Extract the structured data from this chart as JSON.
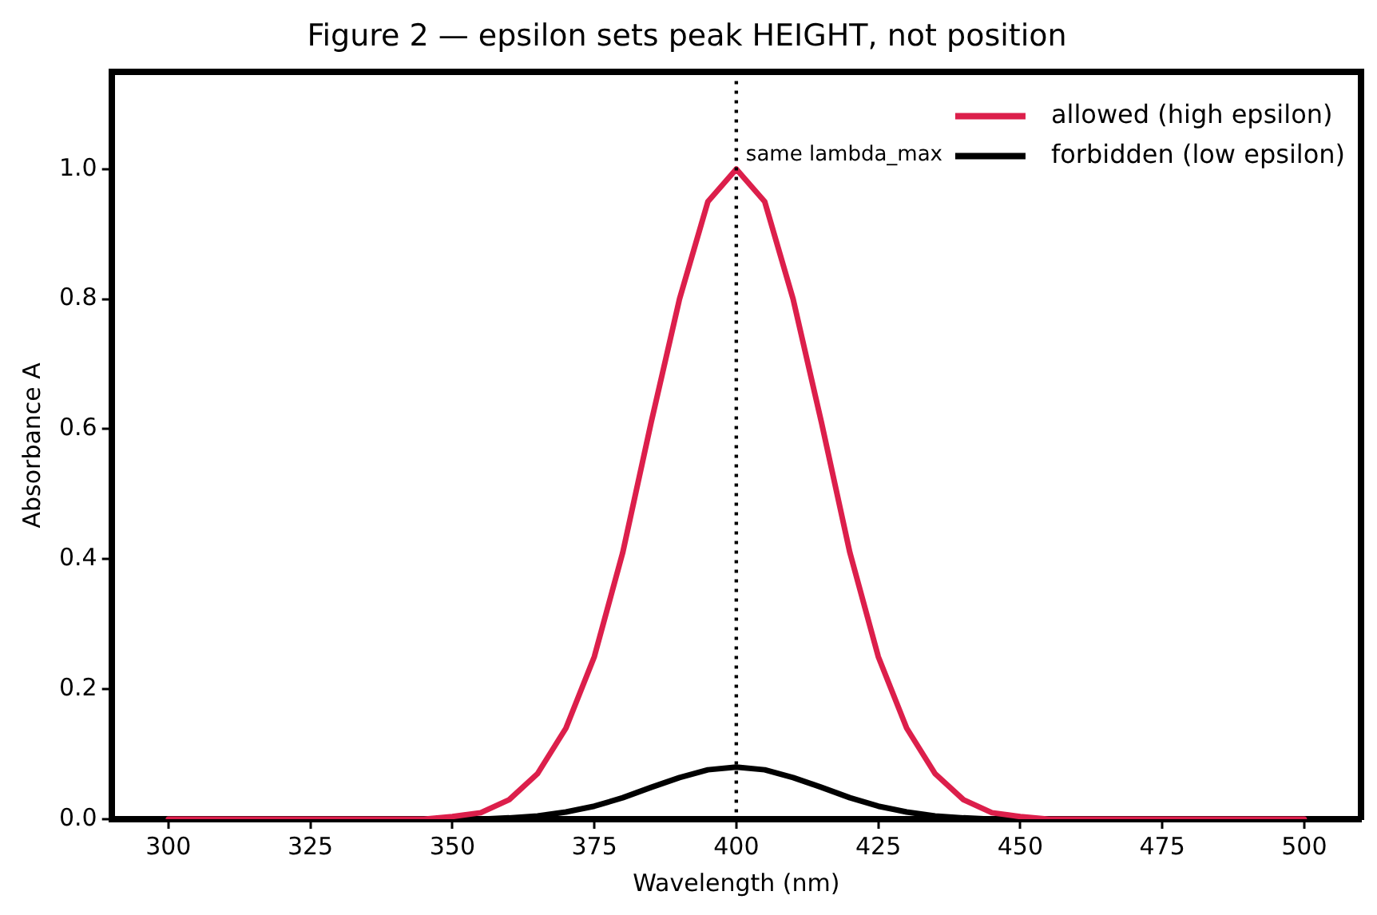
{
  "chart_data": {
    "type": "line",
    "title": "Figure 2 — epsilon sets peak HEIGHT, not position",
    "xlabel": "Wavelength (nm)",
    "ylabel": "Absorbance A",
    "x": [
      300,
      305,
      310,
      315,
      320,
      325,
      330,
      335,
      340,
      345,
      350,
      355,
      360,
      365,
      370,
      375,
      380,
      385,
      390,
      395,
      400,
      405,
      410,
      415,
      420,
      425,
      430,
      435,
      440,
      445,
      450,
      455,
      460,
      465,
      470,
      475,
      480,
      485,
      490,
      495,
      500
    ],
    "series": [
      {
        "name": "allowed (high epsilon)",
        "color": "#dc1f4b",
        "values": [
          0,
          0,
          0,
          0,
          0,
          0,
          0,
          0,
          0,
          0,
          0.004,
          0.01,
          0.03,
          0.07,
          0.14,
          0.25,
          0.41,
          0.61,
          0.8,
          0.95,
          1.0,
          0.95,
          0.8,
          0.61,
          0.41,
          0.25,
          0.14,
          0.07,
          0.03,
          0.01,
          0.004,
          0,
          0,
          0,
          0,
          0,
          0,
          0,
          0,
          0,
          0
        ]
      },
      {
        "name": "forbidden (low epsilon)",
        "color": "#000000",
        "values": [
          0,
          0,
          0,
          0,
          0,
          0,
          0,
          0,
          0,
          0,
          0,
          0,
          0.002,
          0.005,
          0.011,
          0.02,
          0.033,
          0.049,
          0.064,
          0.076,
          0.08,
          0.076,
          0.064,
          0.049,
          0.033,
          0.02,
          0.011,
          0.005,
          0.002,
          0,
          0,
          0,
          0,
          0,
          0,
          0,
          0,
          0,
          0,
          0,
          0
        ]
      }
    ],
    "xlim": [
      290,
      510
    ],
    "xticks": [
      300,
      325,
      350,
      375,
      400,
      425,
      450,
      475,
      500
    ],
    "ylim": [
      0,
      1.15
    ],
    "yticks": [
      {
        "value": 0,
        "label": "0.0"
      },
      {
        "value": 0.2,
        "label": "0.2"
      },
      {
        "value": 0.4,
        "label": "0.4"
      },
      {
        "value": 0.6,
        "label": "0.6"
      },
      {
        "value": 0.8,
        "label": "0.8"
      },
      {
        "value": 1,
        "label": "1.0"
      }
    ],
    "ref_lines": [
      {
        "axis": "x",
        "value": 400,
        "label": "same lambda_max",
        "color": "#000000",
        "line_style": "dotted"
      }
    ],
    "grid": false,
    "legend": "top right",
    "marker": "none",
    "line_style": "solid"
  }
}
